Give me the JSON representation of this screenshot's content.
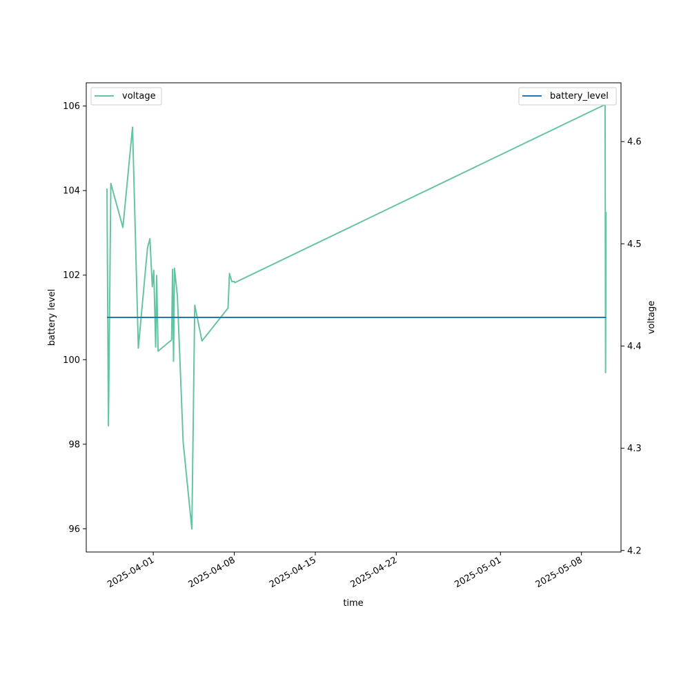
{
  "chart_data": {
    "type": "line",
    "title": "",
    "xlabel": "time",
    "ylabel_left": "battery level",
    "ylabel_right": "voltage",
    "x_ticks": [
      "2025-04-01",
      "2025-04-08",
      "2025-04-15",
      "2025-04-22",
      "2025-05-01",
      "2025-05-08"
    ],
    "y_left_ticks": [
      96,
      98,
      100,
      102,
      104,
      106
    ],
    "y_left_lim": [
      95.45,
      106.55
    ],
    "y_right_ticks": [
      4.2,
      4.3,
      4.4,
      4.5,
      4.6
    ],
    "y_right_lim": [
      4.1985,
      4.6575
    ],
    "xlim": [
      "2025-03-26T05:00",
      "2025-05-11T10:00"
    ],
    "grid": false,
    "legend_left_placement": "upper-left",
    "legend_right_placement": "upper-right",
    "series": [
      {
        "name": "voltage",
        "axis": "right",
        "color": "#66c2a5",
        "x": [
          "2025-03-28T00:00",
          "2025-03-28T03:00",
          "2025-03-28T08:00",
          "2025-03-29T09:00",
          "2025-03-30T05:00",
          "2025-03-30T17:00",
          "2025-03-31T12:00",
          "2025-03-31T17:00",
          "2025-03-31T22:00",
          "2025-04-01T01:00",
          "2025-04-01T05:00",
          "2025-04-01T07:00",
          "2025-04-01T10:00",
          "2025-04-02T14:00",
          "2025-04-02T16:00",
          "2025-04-02T18:00",
          "2025-04-02T20:00",
          "2025-04-03T02:00",
          "2025-04-03T14:00",
          "2025-04-04T08:00",
          "2025-04-04T14:00",
          "2025-04-05T05:00",
          "2025-04-07T11:00",
          "2025-04-07T14:00",
          "2025-04-07T19:00",
          "2025-04-08T00:00",
          "2025-04-08T01:00",
          "2025-05-10T00:00",
          "2025-05-10T01:00",
          "2025-05-10T02:00",
          "2025-05-10T03:00"
        ],
        "values": [
          4.554,
          4.322,
          4.559,
          4.516,
          4.614,
          4.398,
          4.496,
          4.505,
          4.458,
          4.474,
          4.399,
          4.469,
          4.395,
          4.406,
          4.475,
          4.385,
          4.476,
          4.449,
          4.306,
          4.221,
          4.44,
          4.405,
          4.437,
          4.471,
          4.463,
          4.463,
          4.462,
          4.636,
          4.636,
          4.374,
          4.531
        ]
      },
      {
        "name": "battery_level",
        "axis": "left",
        "color": "#1f77b4",
        "x": [
          "2025-03-28T00:00",
          "2025-05-10T03:00"
        ],
        "values": [
          101,
          101
        ]
      }
    ]
  }
}
